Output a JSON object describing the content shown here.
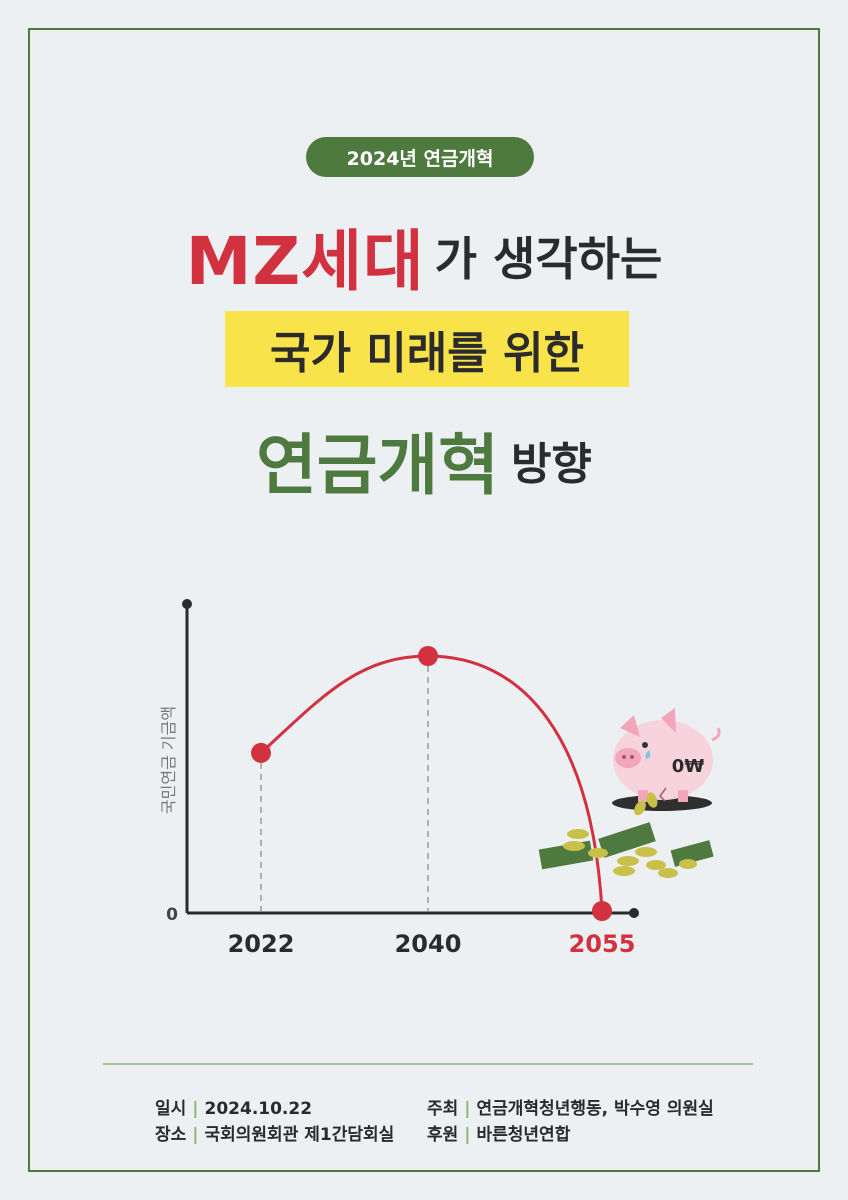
{
  "badge": "2024년 연금개혁",
  "title": {
    "highlight1": "MZ세대",
    "part1": "가 생각하는",
    "line2": "국가 미래를 위한",
    "highlight3": "연금개혁",
    "part3": "방향"
  },
  "chart_data": {
    "type": "line",
    "ylabel": "국민연금 기금액",
    "y_zero_label": "0",
    "categories": [
      "2022",
      "2040",
      "2055"
    ],
    "values": [
      0.62,
      1.0,
      0.0
    ],
    "highlight_color": "#d2313f",
    "grid": false
  },
  "illustration": {
    "name": "broken-piggy-bank-icon",
    "label": "0₩"
  },
  "info": {
    "date_label": "일시",
    "date_value": "2024.10.22",
    "place_label": "장소",
    "place_value": "국회의원회관 제1간담회실",
    "host_label": "주최",
    "host_value": "연금개혁청년행동, 박수영 의원실",
    "sponsor_label": "후원",
    "sponsor_value": "바른청년연합"
  }
}
